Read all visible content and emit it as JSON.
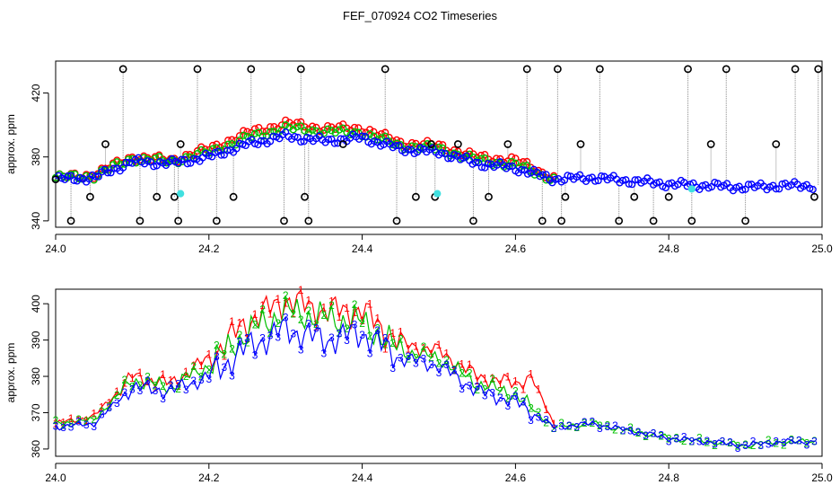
{
  "figure": {
    "title": "FEF_070924  CO2 Timeseries"
  },
  "chart_data": [
    {
      "type": "scatter",
      "ylabel": "approx. ppm",
      "xlim": [
        24.0,
        25.0
      ],
      "ylim": [
        336,
        440
      ],
      "xticks": [
        "24.0",
        "24.2",
        "24.4",
        "24.6",
        "24.8",
        "25.0"
      ],
      "yticks": [
        "340",
        "380",
        "420"
      ],
      "colors": {
        "red": "#ff0000",
        "green": "#00c000",
        "blue": "#0000ff",
        "black": "#000000",
        "cyan": "#40e0e0"
      },
      "series": [
        {
          "name": "black spikes",
          "color": "black",
          "x": [
            24.0,
            24.02,
            24.045,
            24.065,
            24.088,
            24.11,
            24.132,
            24.155,
            24.16,
            24.163,
            24.185,
            24.21,
            24.232,
            24.255,
            24.298,
            24.32,
            24.325,
            24.33,
            24.375,
            24.43,
            24.445,
            24.47,
            24.49,
            24.495,
            24.525,
            24.545,
            24.565,
            24.59,
            24.615,
            24.635,
            24.655,
            24.66,
            24.665,
            24.685,
            24.71,
            24.735,
            24.755,
            24.78,
            24.8,
            24.825,
            24.83,
            24.855,
            24.875,
            24.9,
            24.94,
            24.965,
            24.99,
            24.995
          ],
          "y": [
            366,
            340,
            355,
            388,
            435,
            340,
            355,
            355,
            340,
            388,
            435,
            340,
            355,
            435,
            340,
            435,
            355,
            340,
            388,
            435,
            340,
            355,
            388,
            355,
            388,
            340,
            355,
            388,
            435,
            340,
            435,
            340,
            355,
            388,
            435,
            340,
            355,
            340,
            355,
            435,
            340,
            388,
            435,
            340,
            388,
            435,
            355,
            435
          ]
        },
        {
          "name": "red",
          "color": "red",
          "x": [
            24.0,
            24.05,
            24.1,
            24.15,
            24.2,
            24.25,
            24.3,
            24.35,
            24.4,
            24.45,
            24.5,
            24.55,
            24.6,
            24.65
          ],
          "y": [
            367,
            369,
            380,
            378,
            385,
            395,
            401,
            398,
            398,
            389,
            387,
            380,
            378,
            367
          ]
        },
        {
          "name": "green",
          "color": "green",
          "x": [
            24.0,
            24.05,
            24.1,
            24.15,
            24.2,
            24.25,
            24.3,
            24.35,
            24.4,
            24.45,
            24.5,
            24.55,
            24.6,
            24.65
          ],
          "y": [
            367,
            368,
            379,
            377,
            383,
            392,
            398,
            396,
            395,
            387,
            385,
            378,
            375,
            366
          ]
        },
        {
          "name": "blue",
          "color": "blue",
          "x": [
            24.0,
            24.05,
            24.1,
            24.15,
            24.2,
            24.25,
            24.3,
            24.35,
            24.4,
            24.45,
            24.5,
            24.55,
            24.6,
            24.65,
            24.7,
            24.75,
            24.8,
            24.85,
            24.9,
            24.95,
            24.99
          ],
          "y": [
            366,
            367,
            377,
            376,
            380,
            388,
            393,
            390,
            392,
            385,
            383,
            376,
            373,
            366,
            367,
            365,
            363,
            362,
            361,
            362,
            362
          ]
        },
        {
          "name": "cyan",
          "color": "cyan",
          "x": [
            24.163,
            24.498,
            24.83
          ],
          "y": [
            357,
            357,
            360
          ]
        }
      ]
    },
    {
      "type": "line",
      "ylabel": "approx. ppm",
      "xlim": [
        24.0,
        25.0
      ],
      "ylim": [
        358,
        404
      ],
      "xticks": [
        "24.0",
        "24.2",
        "24.4",
        "24.6",
        "24.8",
        "25.0"
      ],
      "yticks": [
        "360",
        "370",
        "380",
        "390",
        "400"
      ],
      "colors": {
        "red": "#ff0000",
        "green": "#00c000",
        "blue": "#0000ff"
      },
      "series": [
        {
          "name": "1",
          "color": "red",
          "x": [
            24.0,
            24.05,
            24.1,
            24.15,
            24.2,
            24.25,
            24.3,
            24.35,
            24.4,
            24.45,
            24.5,
            24.55,
            24.6,
            24.62,
            24.65
          ],
          "y": [
            367,
            369,
            380,
            378,
            385,
            395,
            401,
            398,
            398,
            389,
            387,
            380,
            378,
            380,
            367
          ]
        },
        {
          "name": "2",
          "color": "green",
          "x": [
            24.0,
            24.05,
            24.1,
            24.15,
            24.2,
            24.25,
            24.3,
            24.35,
            24.4,
            24.45,
            24.5,
            24.55,
            24.6,
            24.65,
            24.7,
            24.75,
            24.8,
            24.85,
            24.9,
            24.95,
            24.99
          ],
          "y": [
            367,
            368,
            379,
            377,
            383,
            392,
            398,
            396,
            395,
            387,
            385,
            378,
            375,
            366,
            367,
            365,
            363,
            362,
            361,
            362,
            362
          ]
        },
        {
          "name": "3",
          "color": "blue",
          "x": [
            24.0,
            24.05,
            24.1,
            24.15,
            24.2,
            24.25,
            24.3,
            24.35,
            24.4,
            24.45,
            24.5,
            24.55,
            24.6,
            24.65,
            24.7,
            24.75,
            24.8,
            24.85,
            24.9,
            24.95,
            24.99
          ],
          "y": [
            366,
            367,
            377,
            376,
            380,
            388,
            393,
            390,
            392,
            385,
            383,
            376,
            373,
            366,
            367,
            365,
            363,
            362,
            361,
            362,
            362
          ]
        }
      ]
    }
  ]
}
